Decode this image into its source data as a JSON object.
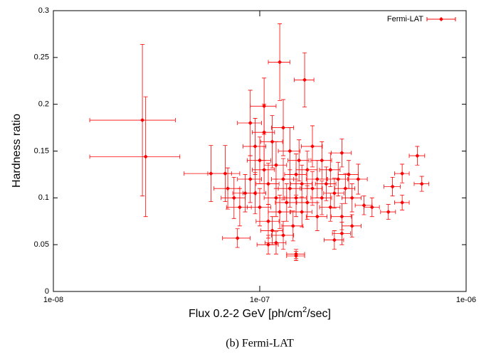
{
  "chart_data": {
    "type": "scatter",
    "xlabel_parts": [
      "Flux 0.2-2 GeV [ph/cm",
      "2",
      "/sec]"
    ],
    "ylabel": "Hardness ratio",
    "caption": "(b) Fermi-LAT",
    "xscale": "log",
    "xlim": [
      1e-08,
      1e-06
    ],
    "xticks": [
      {
        "value": 1e-08,
        "label": "1e-08"
      },
      {
        "value": 1e-07,
        "label": "1e-07"
      },
      {
        "value": 1e-06,
        "label": "1e-06"
      }
    ],
    "ylim": [
      0,
      0.3
    ],
    "yticks": [
      0,
      0.05,
      0.1,
      0.15,
      0.2,
      0.25,
      0.3
    ],
    "legend": "top-right",
    "series": [
      {
        "name": "Fermi-LAT",
        "color": "#ff0000",
        "x": [
          2.7e-08,
          2.8e-08,
          1.25e-07,
          1.65e-07,
          1.05e-07,
          5.8e-07,
          6.1e-07,
          4.9e-07,
          4.4e-07,
          4.9e-07,
          4.2e-07,
          1.5e-07,
          1.5e-07,
          5.8e-08,
          6.8e-08,
          7.8e-08,
          1.1e-07,
          1.2e-07,
          2.3e-07,
          2.5e-07,
          2.8e-07,
          2.7e-07,
          2.5e-07,
          3.2e-07,
          3.5e-07,
          9e-08,
          9.5e-08,
          1e-07,
          1e-07,
          1.05e-07,
          1.1e-07,
          1.1e-07,
          1.15e-07,
          1.2e-07,
          1.2e-07,
          1.25e-07,
          1.3e-07,
          1.3e-07,
          1.35e-07,
          1.4e-07,
          1.4e-07,
          1.45e-07,
          1.5e-07,
          1.5e-07,
          1.55e-07,
          1.6e-07,
          1.6e-07,
          1.7e-07,
          1.7e-07,
          1.8e-07,
          1.8e-07,
          1.9e-07,
          1.9e-07,
          2e-07,
          2e-07,
          2.1e-07,
          2.2e-07,
          2.2e-07,
          2.3e-07,
          2.4e-07,
          2.5e-07,
          2.6e-07,
          2.8e-07,
          3e-07,
          8e-08,
          8.5e-08,
          7.5e-08,
          7e-08,
          9.5e-08,
          1.15e-07,
          1.3e-07,
          9e-08,
          1.05e-07
        ],
        "y": [
          0.183,
          0.144,
          0.245,
          0.226,
          0.198,
          0.145,
          0.115,
          0.126,
          0.112,
          0.095,
          0.085,
          0.038,
          0.04,
          0.126,
          0.126,
          0.057,
          0.05,
          0.052,
          0.055,
          0.062,
          0.07,
          0.125,
          0.148,
          0.092,
          0.09,
          0.12,
          0.105,
          0.09,
          0.14,
          0.13,
          0.115,
          0.075,
          0.16,
          0.1,
          0.135,
          0.085,
          0.12,
          0.175,
          0.095,
          0.11,
          0.15,
          0.07,
          0.125,
          0.1,
          0.14,
          0.085,
          0.115,
          0.13,
          0.095,
          0.11,
          0.155,
          0.08,
          0.12,
          0.1,
          0.14,
          0.115,
          0.09,
          0.13,
          0.105,
          0.12,
          0.08,
          0.11,
          0.1,
          0.12,
          0.09,
          0.105,
          0.1,
          0.11,
          0.155,
          0.065,
          0.06,
          0.18,
          0.17
        ],
        "xerr": [
          1.2e-08,
          1.3e-08,
          1.5e-08,
          1.8e-08,
          1.5e-08,
          5e-08,
          5e-08,
          4e-08,
          4e-08,
          4e-08,
          3.5e-08,
          1.5e-08,
          1.5e-08,
          1.5e-08,
          1.2e-08,
          1.2e-08,
          1.3e-08,
          1.4e-08,
          2.5e-08,
          2.5e-08,
          3e-08,
          3e-08,
          2.8e-08,
          3e-08,
          3e-08,
          1.2e-08,
          1.2e-08,
          1.3e-08,
          1.3e-08,
          1.3e-08,
          1.4e-08,
          1.4e-08,
          1.4e-08,
          1.5e-08,
          1.5e-08,
          1.5e-08,
          1.6e-08,
          1.6e-08,
          1.6e-08,
          1.7e-08,
          1.7e-08,
          1.7e-08,
          1.8e-08,
          1.8e-08,
          1.8e-08,
          1.9e-08,
          1.9e-08,
          2e-08,
          2e-08,
          2.1e-08,
          2.1e-08,
          2.2e-08,
          2.2e-08,
          2.3e-08,
          2.3e-08,
          2.4e-08,
          2.5e-08,
          2.5e-08,
          2.6e-08,
          2.7e-08,
          2.8e-08,
          2.9e-08,
          3e-08,
          3.2e-08,
          1.1e-08,
          1.1e-08,
          1e-08,
          1e-08,
          1.2e-08,
          1.4e-08,
          1.6e-08,
          1.2e-08,
          1.3e-08
        ],
        "yerr": [
          0.081,
          0.064,
          0.041,
          0.029,
          0.03,
          0.01,
          0.008,
          0.01,
          0.01,
          0.008,
          0.008,
          0.005,
          0.005,
          0.03,
          0.03,
          0.01,
          0.01,
          0.012,
          0.01,
          0.012,
          0.012,
          0.015,
          0.015,
          0.01,
          0.01,
          0.025,
          0.022,
          0.02,
          0.025,
          0.025,
          0.022,
          0.018,
          0.028,
          0.02,
          0.025,
          0.018,
          0.022,
          0.03,
          0.02,
          0.02,
          0.025,
          0.016,
          0.022,
          0.02,
          0.022,
          0.016,
          0.02,
          0.02,
          0.018,
          0.018,
          0.022,
          0.015,
          0.02,
          0.018,
          0.02,
          0.018,
          0.015,
          0.018,
          0.016,
          0.018,
          0.014,
          0.016,
          0.015,
          0.016,
          0.02,
          0.02,
          0.022,
          0.022,
          0.03,
          0.015,
          0.015,
          0.035,
          0.03
        ]
      }
    ]
  }
}
